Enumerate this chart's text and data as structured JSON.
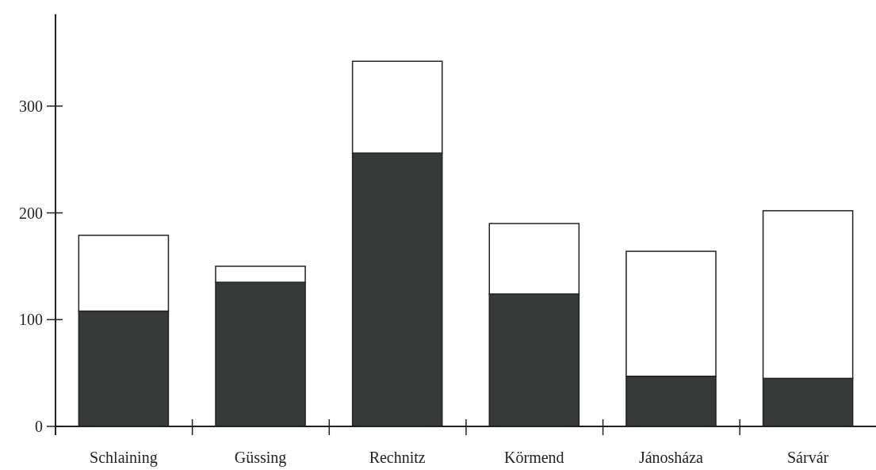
{
  "chart_data": {
    "type": "bar",
    "stacked": true,
    "categories": [
      "Schlaining",
      "Güssing",
      "Rechnitz",
      "Körmend",
      "Jánosháza",
      "Sárvár"
    ],
    "series": [
      {
        "color": "#363a38",
        "values": [
          108,
          135,
          256,
          124,
          47,
          45
        ]
      },
      {
        "color": "#ffffff",
        "values": [
          71,
          15,
          86,
          66,
          117,
          157
        ]
      }
    ],
    "ylim": [
      0,
      386
    ],
    "yticks": [
      0,
      100,
      200,
      300
    ],
    "grid": false
  }
}
